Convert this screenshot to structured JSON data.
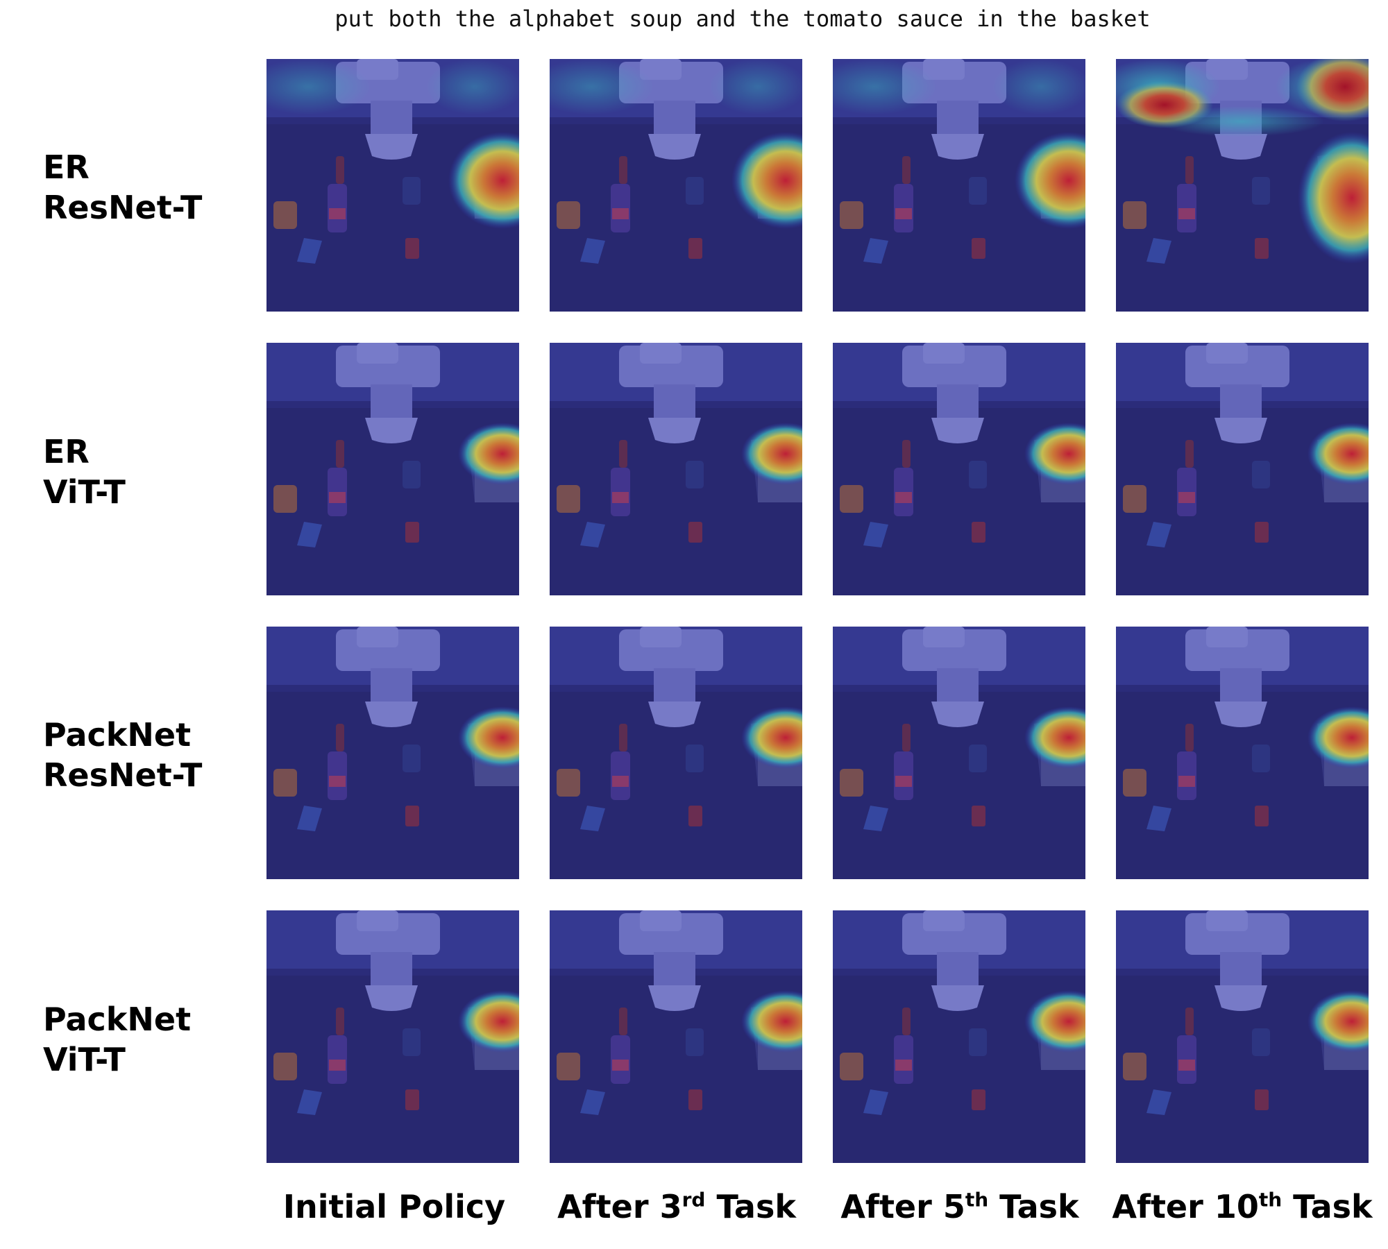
{
  "caption": "put both the alphabet soup and the tomato sauce in the basket",
  "rows": [
    {
      "line1": "ER",
      "line2": "ResNet-T"
    },
    {
      "line1": "ER",
      "line2": "ViT-T"
    },
    {
      "line1": "PackNet",
      "line2": "ResNet-T"
    },
    {
      "line1": "PackNet",
      "line2": "ViT-T"
    }
  ],
  "columns": [
    {
      "pre": "Initial Policy",
      "sup": "",
      "post": ""
    },
    {
      "pre": "After 3",
      "sup": "rd",
      "post": " Task"
    },
    {
      "pre": "After 5",
      "sup": "th",
      "post": " Task"
    },
    {
      "pre": "After 10",
      "sup": "th",
      "post": " Task"
    }
  ],
  "colors": {
    "background_overlay": "#2a2a6e",
    "table": "#2b2b63",
    "wall": "#3b3f8a",
    "heat_hot": "#e02020",
    "heat_warm": "#f0c020",
    "heat_cool": "#30c0d0"
  }
}
